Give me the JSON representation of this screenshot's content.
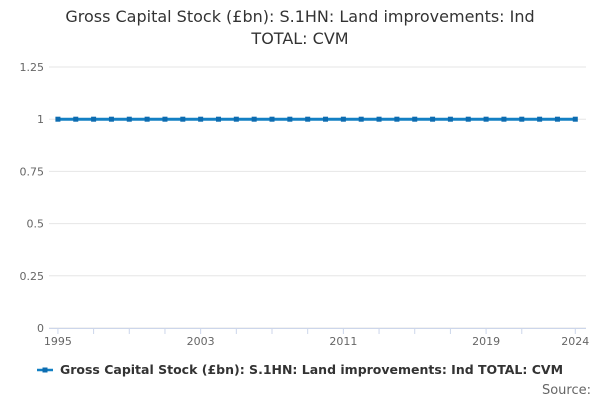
{
  "title": {
    "lines": [
      "Gross Capital Stock (£bn): S.1HN: Land improvements: Ind",
      "TOTAL: CVM"
    ]
  },
  "chart_data": {
    "type": "line",
    "title": "Gross Capital Stock (£bn): S.1HN: Land improvements: Ind TOTAL: CVM",
    "x": [
      1995,
      1996,
      1997,
      1998,
      1999,
      2000,
      2001,
      2002,
      2003,
      2004,
      2005,
      2006,
      2007,
      2008,
      2009,
      2010,
      2011,
      2012,
      2013,
      2014,
      2015,
      2016,
      2017,
      2018,
      2019,
      2020,
      2021,
      2022,
      2023,
      2024
    ],
    "series": [
      {
        "name": "Gross Capital Stock (£bn): S.1HN: Land improvements: Ind TOTAL: CVM",
        "values": [
          1,
          1,
          1,
          1,
          1,
          1,
          1,
          1,
          1,
          1,
          1,
          1,
          1,
          1,
          1,
          1,
          1,
          1,
          1,
          1,
          1,
          1,
          1,
          1,
          1,
          1,
          1,
          1,
          1,
          1
        ]
      }
    ],
    "xlabel": "",
    "ylabel": "",
    "xlim": [
      1994.5,
      2024.6
    ],
    "ylim": [
      0,
      1.25
    ],
    "yticks": [
      0,
      0.25,
      0.5,
      0.75,
      1,
      1.25
    ],
    "ytick_labels": [
      "0",
      "0.25",
      "0.5",
      "0.75",
      "1",
      "1.25"
    ],
    "xtick_years": [
      1995,
      1997,
      1999,
      2001,
      2003,
      2005,
      2007,
      2009,
      2011,
      2013,
      2015,
      2017,
      2019,
      2021,
      2024
    ],
    "xtick_labeled": [
      1995,
      2003,
      2011,
      2019,
      2024
    ],
    "grid": "horizontal",
    "legend_position": "bottom-center",
    "marker_shape": "square"
  },
  "legend": {
    "label": "Gross Capital Stock (£bn): S.1HN: Land improvements: Ind TOTAL: CVM"
  },
  "footer": {
    "source_label": "Source:"
  },
  "colors": {
    "line": "#1380c4",
    "marker": "#0d6cb0",
    "grid": "#e6e6e6",
    "axis_line": "#ccd6eb",
    "tick_label": "#666666"
  }
}
